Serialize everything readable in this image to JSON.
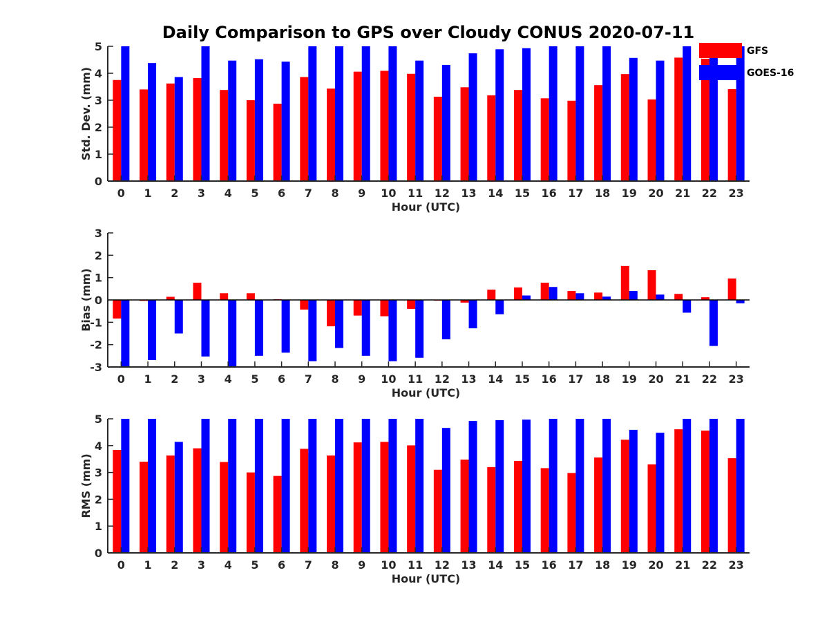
{
  "chart_data": {
    "title": "Daily Comparison to GPS over Cloudy CONUS 2020-07-11",
    "legend": {
      "placement": "top-right",
      "entries": [
        {
          "name": "GFS",
          "color": "#ff0000"
        },
        {
          "name": "GOES-16",
          "color": "#0000ff"
        }
      ]
    },
    "panels": [
      {
        "type": "bar",
        "ylabel": "Std. Dev. (mm)",
        "xlabel": "Hour (UTC)",
        "ylim": [
          0,
          5
        ],
        "yticks": [
          0,
          1,
          2,
          3,
          4,
          5
        ],
        "categories": [
          "0",
          "1",
          "2",
          "3",
          "4",
          "5",
          "6",
          "7",
          "8",
          "9",
          "10",
          "11",
          "12",
          "13",
          "14",
          "15",
          "16",
          "17",
          "18",
          "19",
          "20",
          "21",
          "22",
          "23"
        ],
        "series": [
          {
            "name": "GFS",
            "color": "#ff0000",
            "values": [
              3.75,
              3.4,
              3.62,
              3.82,
              3.38,
              3.0,
              2.87,
              3.86,
              3.43,
              4.06,
              4.09,
              3.98,
              3.13,
              3.48,
              3.18,
              3.38,
              3.07,
              2.98,
              3.56,
              3.97,
              3.03,
              4.58,
              4.54,
              3.41
            ]
          },
          {
            "name": "GOES-16",
            "color": "#0000ff",
            "values": [
              5.0,
              4.38,
              3.86,
              5.0,
              4.47,
              4.52,
              4.43,
              5.0,
              5.0,
              5.0,
              5.0,
              4.47,
              4.31,
              4.74,
              4.89,
              4.93,
              5.0,
              5.0,
              5.0,
              4.57,
              4.47,
              5.0,
              4.89,
              5.0
            ]
          }
        ]
      },
      {
        "type": "bar",
        "ylabel": "Bias (mm)",
        "xlabel": "Hour (UTC)",
        "ylim": [
          -3,
          3
        ],
        "yticks": [
          -3,
          -2,
          -1,
          0,
          1,
          2,
          3
        ],
        "categories": [
          "0",
          "1",
          "2",
          "3",
          "4",
          "5",
          "6",
          "7",
          "8",
          "9",
          "10",
          "11",
          "12",
          "13",
          "14",
          "15",
          "16",
          "17",
          "18",
          "19",
          "20",
          "21",
          "22",
          "23"
        ],
        "series": [
          {
            "name": "GFS",
            "color": "#ff0000",
            "values": [
              -0.83,
              -0.04,
              0.14,
              0.77,
              0.3,
              0.3,
              0.03,
              -0.43,
              -1.18,
              -0.7,
              -0.73,
              -0.4,
              -0.03,
              -0.12,
              0.46,
              0.56,
              0.77,
              0.4,
              0.33,
              1.52,
              1.33,
              0.27,
              0.12,
              0.96
            ]
          },
          {
            "name": "GOES-16",
            "color": "#0000ff",
            "values": [
              -3.0,
              -2.69,
              -1.5,
              -2.53,
              -3.0,
              -2.5,
              -2.36,
              -2.74,
              -2.15,
              -2.5,
              -2.74,
              -2.59,
              -1.76,
              -1.27,
              -0.64,
              0.2,
              0.58,
              0.3,
              0.15,
              0.4,
              0.24,
              -0.57,
              -2.06,
              -0.15
            ]
          }
        ]
      },
      {
        "type": "bar",
        "ylabel": "RMS (mm)",
        "xlabel": "Hour (UTC)",
        "ylim": [
          0,
          5
        ],
        "yticks": [
          0,
          1,
          2,
          3,
          4,
          5
        ],
        "categories": [
          "0",
          "1",
          "2",
          "3",
          "4",
          "5",
          "6",
          "7",
          "8",
          "9",
          "10",
          "11",
          "12",
          "13",
          "14",
          "15",
          "16",
          "17",
          "18",
          "19",
          "20",
          "21",
          "22",
          "23"
        ],
        "series": [
          {
            "name": "GFS",
            "color": "#ff0000",
            "values": [
              3.84,
              3.4,
              3.63,
              3.9,
              3.39,
              3.0,
              2.87,
              3.88,
              3.63,
              4.12,
              4.14,
              4.01,
              3.1,
              3.48,
              3.2,
              3.43,
              3.16,
              2.98,
              3.56,
              4.22,
              3.3,
              4.61,
              4.56,
              3.53
            ]
          },
          {
            "name": "GOES-16",
            "color": "#0000ff",
            "values": [
              5.0,
              5.0,
              4.14,
              5.0,
              5.0,
              5.0,
              5.0,
              5.0,
              5.0,
              5.0,
              5.0,
              5.0,
              4.66,
              4.92,
              4.95,
              4.97,
              5.0,
              5.0,
              5.0,
              4.59,
              4.48,
              5.0,
              5.0,
              5.0
            ]
          }
        ]
      }
    ]
  }
}
